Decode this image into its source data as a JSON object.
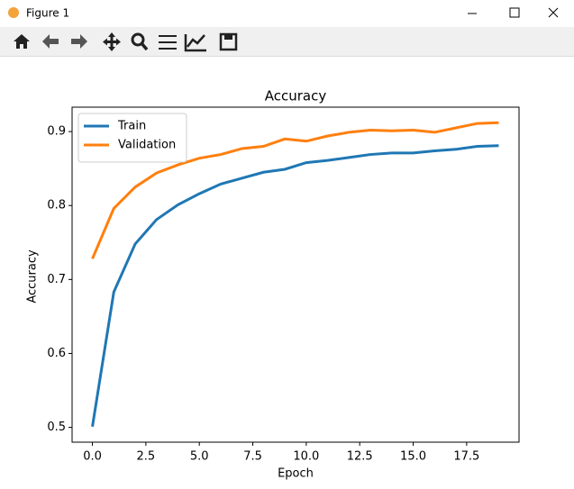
{
  "window": {
    "title": "Figure 1"
  },
  "chart_data": {
    "type": "line",
    "title": "Accuracy",
    "x_label": "Epoch",
    "y_label": "Accuracy",
    "x": [
      0,
      1,
      2,
      3,
      4,
      5,
      6,
      7,
      8,
      9,
      10,
      11,
      12,
      13,
      14,
      15,
      16,
      17,
      18,
      19
    ],
    "series": [
      {
        "name": "Train",
        "color": "#1f77b4",
        "values": [
          0.501,
          0.683,
          0.748,
          0.781,
          0.801,
          0.816,
          0.829,
          0.837,
          0.845,
          0.849,
          0.858,
          0.861,
          0.865,
          0.869,
          0.871,
          0.871,
          0.874,
          0.876,
          0.88,
          0.881
        ]
      },
      {
        "name": "Validation",
        "color": "#ff7f0e",
        "values": [
          0.728,
          0.796,
          0.825,
          0.844,
          0.855,
          0.864,
          0.869,
          0.877,
          0.88,
          0.89,
          0.887,
          0.894,
          0.899,
          0.902,
          0.901,
          0.902,
          0.899,
          0.905,
          0.911,
          0.912
        ]
      }
    ],
    "xlim": [
      -0.95,
      19.95
    ],
    "xticks": [
      {
        "value": 0,
        "label": "0.0"
      },
      {
        "value": 2.5,
        "label": "2.5"
      },
      {
        "value": 5,
        "label": "5.0"
      },
      {
        "value": 7.5,
        "label": "7.5"
      },
      {
        "value": 10,
        "label": "10.0"
      },
      {
        "value": 12.5,
        "label": "12.5"
      },
      {
        "value": 15,
        "label": "15.0"
      },
      {
        "value": 17.5,
        "label": "17.5"
      }
    ],
    "ylim": [
      0.48,
      0.933
    ],
    "yticks": [
      0.5,
      0.6,
      0.7,
      0.8,
      0.9
    ],
    "legend": "upper left",
    "grid": false
  }
}
